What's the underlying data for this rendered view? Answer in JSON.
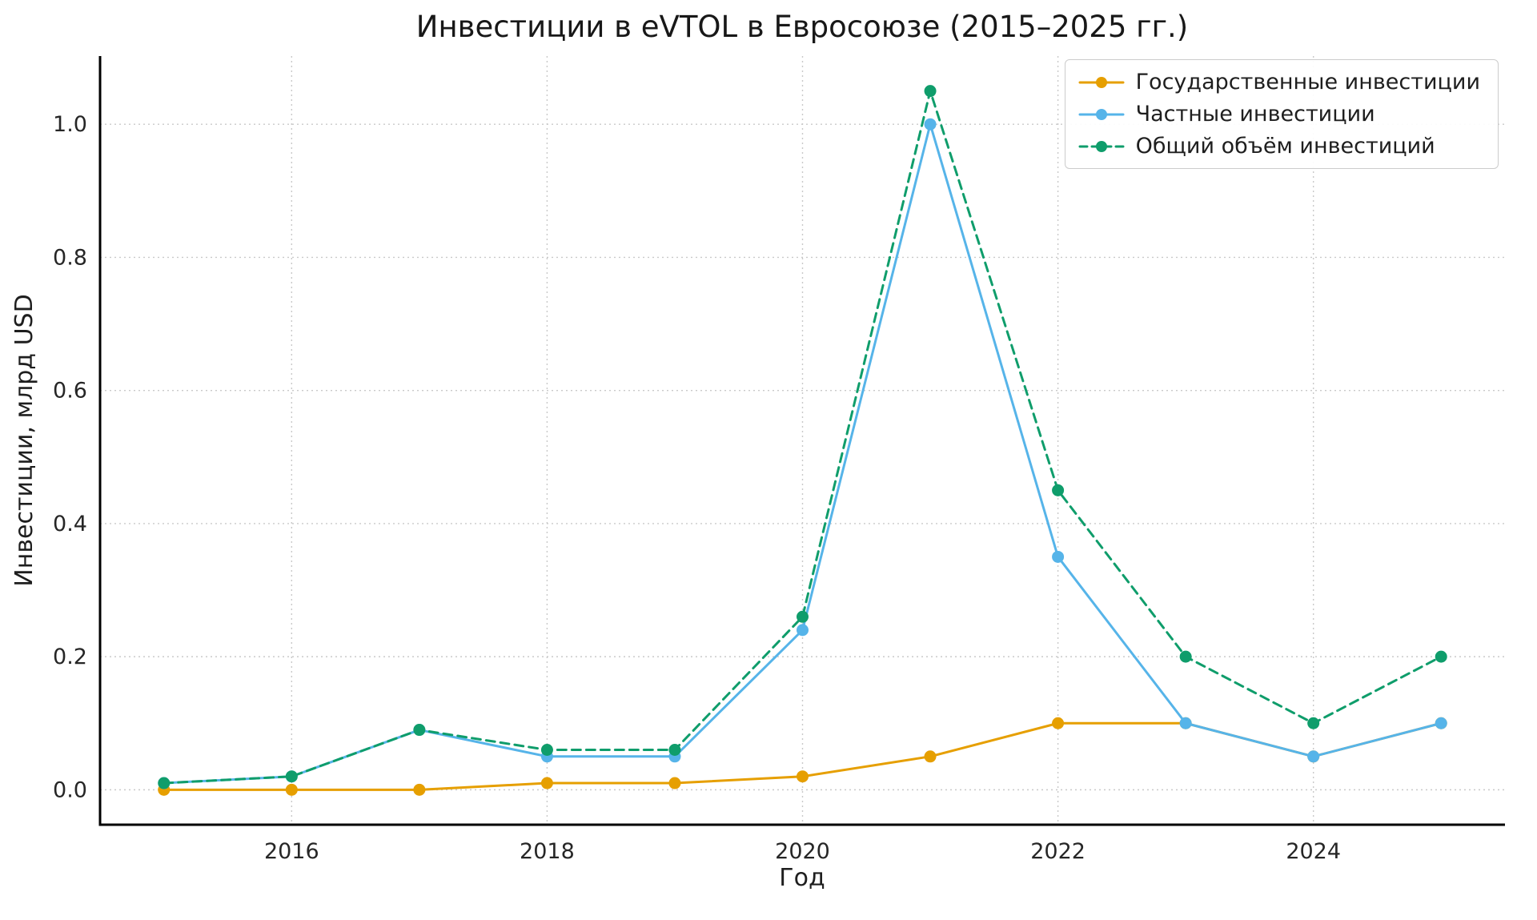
{
  "chart_data": {
    "type": "line",
    "title": "Инвестиции в eVTOL в Евросоюзе (2015–2025 гг.)",
    "xlabel": "Год",
    "ylabel": "Инвестиции, млрд USD",
    "x": [
      2015,
      2016,
      2017,
      2018,
      2019,
      2020,
      2021,
      2022,
      2023,
      2024,
      2025
    ],
    "series": [
      {
        "name": "Государственные инвестиции",
        "color": "#E69F00",
        "dash": "solid",
        "marker": "circle",
        "values": [
          0.0,
          0.0,
          0.0,
          0.01,
          0.01,
          0.02,
          0.05,
          0.1,
          0.1,
          0.05,
          0.1
        ]
      },
      {
        "name": "Частные инвестиции",
        "color": "#56B4E9",
        "dash": "solid",
        "marker": "circle",
        "values": [
          0.01,
          0.02,
          0.09,
          0.05,
          0.05,
          0.24,
          1.0,
          0.35,
          0.1,
          0.05,
          0.1
        ]
      },
      {
        "name": "Общий объём инвестиций",
        "color": "#0F9D6B",
        "dash": "dashed",
        "marker": "circle",
        "values": [
          0.01,
          0.02,
          0.09,
          0.06,
          0.06,
          0.26,
          1.05,
          0.45,
          0.2,
          0.1,
          0.2
        ]
      }
    ],
    "xlim": [
      2014.5,
      2025.5
    ],
    "ylim": [
      -0.0525,
      1.1025
    ],
    "xticks": [
      2016,
      2018,
      2020,
      2022,
      2024
    ],
    "xtick_labels": [
      "2016",
      "2018",
      "2020",
      "2022",
      "2024"
    ],
    "yticks": [
      0.0,
      0.2,
      0.4,
      0.6,
      0.8,
      1.0
    ],
    "ytick_labels": [
      "0.0",
      "0.2",
      "0.4",
      "0.6",
      "0.8",
      "1.0"
    ],
    "grid": true,
    "grid_color": "#c9c9c9",
    "axis_color": "#000000",
    "legend": {
      "position": "upper right",
      "entries": [
        "Государственные инвестиции",
        "Частные инвестиции",
        "Общий объём инвестиций"
      ]
    }
  }
}
